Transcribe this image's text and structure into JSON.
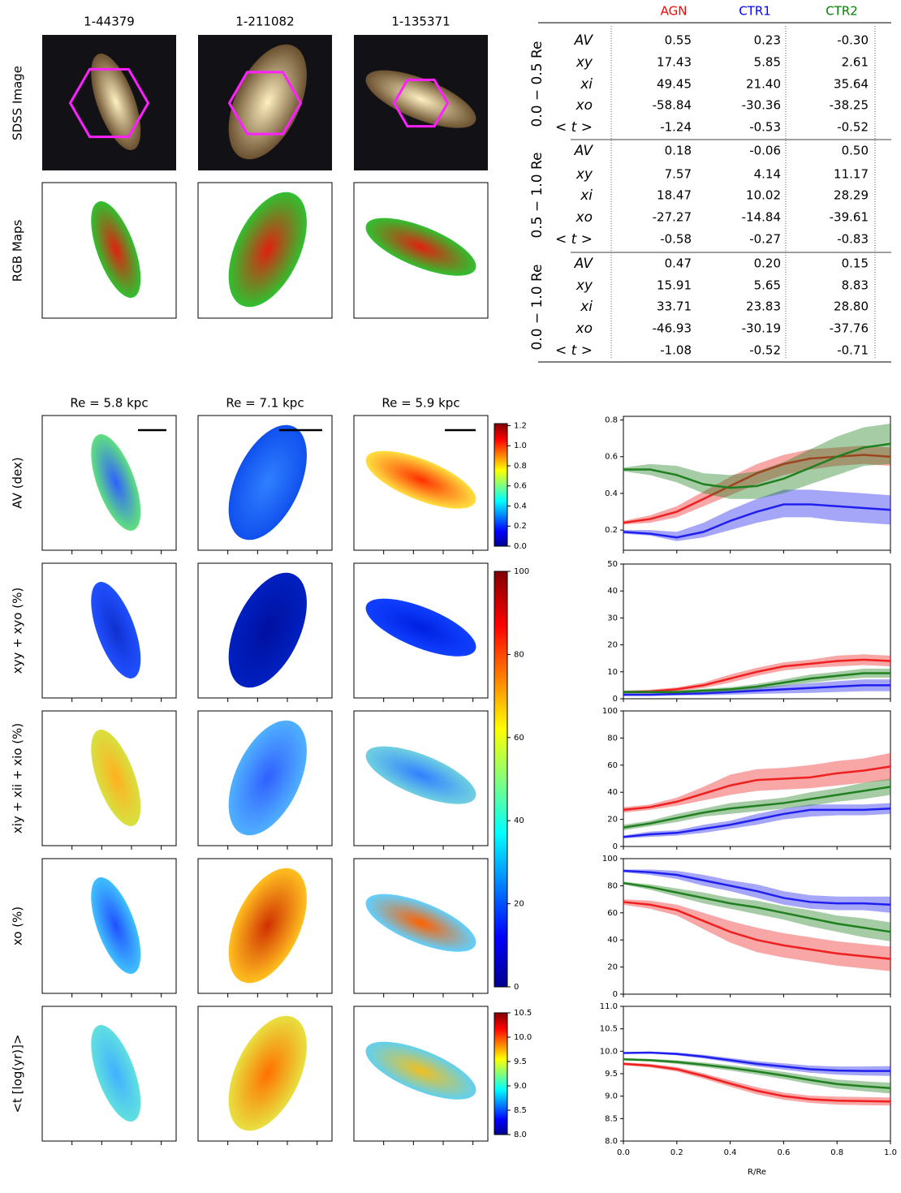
{
  "galaxies": {
    "ids": [
      "1-44379",
      "1-211082",
      "1-135371"
    ],
    "re_labels": [
      "Re = 5.8 kpc",
      "Re = 7.1 kpc",
      "Re = 5.9 kpc"
    ]
  },
  "image_row_labels": [
    "SDSS Image",
    "RGB Maps"
  ],
  "map_row_labels": [
    "AV (dex)",
    "xyy + xyo (%)",
    "xiy + xii + xio (%)",
    "xo (%)",
    "<t [log(yr)]>"
  ],
  "table": {
    "columns": [
      "AGN",
      "CTR1",
      "CTR2"
    ],
    "colors": [
      "#ff0000",
      "#0000ff",
      "#008000"
    ],
    "groups": [
      {
        "label": "0.0 − 0.5 Re",
        "rows": [
          {
            "label": "AV",
            "values": [
              "0.55",
              "0.23",
              "-0.30"
            ]
          },
          {
            "label": "xy",
            "values": [
              "17.43",
              "5.85",
              "2.61"
            ]
          },
          {
            "label": "xi",
            "values": [
              "49.45",
              "21.40",
              "35.64"
            ]
          },
          {
            "label": "xo",
            "values": [
              "-58.84",
              "-30.36",
              "-38.25"
            ]
          },
          {
            "label": "< t >",
            "values": [
              "-1.24",
              "-0.53",
              "-0.52"
            ]
          }
        ]
      },
      {
        "label": "0.5 − 1.0 Re",
        "rows": [
          {
            "label": "AV",
            "values": [
              "0.18",
              "-0.06",
              "0.50"
            ]
          },
          {
            "label": "xy",
            "values": [
              "7.57",
              "4.14",
              "11.17"
            ]
          },
          {
            "label": "xi",
            "values": [
              "18.47",
              "10.02",
              "28.29"
            ]
          },
          {
            "label": "xo",
            "values": [
              "-27.27",
              "-14.84",
              "-39.61"
            ]
          },
          {
            "label": "< t >",
            "values": [
              "-0.58",
              "-0.27",
              "-0.83"
            ]
          }
        ]
      },
      {
        "label": "0.0 − 1.0 Re",
        "rows": [
          {
            "label": "AV",
            "values": [
              "0.47",
              "0.20",
              "0.15"
            ]
          },
          {
            "label": "xy",
            "values": [
              "15.91",
              "5.65",
              "8.83"
            ]
          },
          {
            "label": "xi",
            "values": [
              "33.71",
              "23.83",
              "28.80"
            ]
          },
          {
            "label": "xo",
            "values": [
              "-46.93",
              "-30.19",
              "-37.76"
            ]
          },
          {
            "label": "< t >",
            "values": [
              "-1.08",
              "-0.52",
              "-0.71"
            ]
          }
        ]
      }
    ]
  },
  "colorbars": [
    {
      "lim": [
        0,
        1.22
      ],
      "ticks": [
        {
          "value": 0,
          "label": "0.0"
        },
        0.2,
        0.4,
        0.6,
        0.8,
        {
          "value": 1,
          "label": "1.0"
        },
        1.2
      ]
    },
    {
      "lim": [
        0,
        100
      ],
      "ticks": [
        0,
        20,
        40,
        60,
        80,
        100
      ]
    },
    {
      "lim": [
        8.0,
        10.5
      ],
      "ticks": [
        {
          "value": 8,
          "label": "8.0"
        },
        8.5,
        {
          "value": 9,
          "label": "9.0"
        },
        9.5,
        {
          "value": 10,
          "label": "10.0"
        },
        10.5
      ]
    }
  ],
  "chart_data": [
    {
      "type": "line",
      "x": [
        0,
        0.1,
        0.2,
        0.3,
        0.4,
        0.5,
        0.6,
        0.7,
        0.8,
        0.9,
        1.0
      ],
      "xlim": [
        0,
        1
      ],
      "ylim": [
        0.09,
        0.82
      ],
      "yticks": [
        0.2,
        0.4,
        0.6,
        0.8
      ],
      "series": [
        {
          "color": "#ee2020",
          "values": [
            0.24,
            0.26,
            0.3,
            0.37,
            0.44,
            0.51,
            0.56,
            0.59,
            0.6,
            0.61,
            0.6
          ],
          "low": [
            0.23,
            0.24,
            0.27,
            0.33,
            0.39,
            0.45,
            0.5,
            0.53,
            0.55,
            0.56,
            0.55
          ],
          "high": [
            0.25,
            0.28,
            0.33,
            0.41,
            0.49,
            0.56,
            0.61,
            0.64,
            0.65,
            0.66,
            0.65
          ]
        },
        {
          "color": "#2020ee",
          "values": [
            0.19,
            0.18,
            0.16,
            0.19,
            0.25,
            0.3,
            0.34,
            0.34,
            0.33,
            0.32,
            0.31
          ],
          "low": [
            0.18,
            0.17,
            0.14,
            0.16,
            0.2,
            0.24,
            0.27,
            0.27,
            0.25,
            0.24,
            0.23
          ],
          "high": [
            0.2,
            0.2,
            0.19,
            0.24,
            0.31,
            0.37,
            0.42,
            0.42,
            0.41,
            0.4,
            0.39
          ]
        },
        {
          "color": "#208020",
          "values": [
            0.53,
            0.53,
            0.5,
            0.45,
            0.43,
            0.44,
            0.48,
            0.54,
            0.6,
            0.65,
            0.67
          ],
          "low": [
            0.52,
            0.5,
            0.46,
            0.4,
            0.37,
            0.37,
            0.4,
            0.45,
            0.5,
            0.55,
            0.56
          ],
          "high": [
            0.54,
            0.56,
            0.55,
            0.51,
            0.5,
            0.52,
            0.57,
            0.64,
            0.71,
            0.76,
            0.78
          ]
        }
      ]
    },
    {
      "type": "line",
      "x": [
        0,
        0.1,
        0.2,
        0.3,
        0.4,
        0.5,
        0.6,
        0.7,
        0.8,
        0.9,
        1.0
      ],
      "xlim": [
        0,
        1
      ],
      "ylim": [
        0,
        50
      ],
      "yticks": [
        0,
        10,
        20,
        30,
        40,
        50
      ],
      "series": [
        {
          "color": "#ee2020",
          "values": [
            2.5,
            2.7,
            3.5,
            5,
            7.5,
            10,
            12,
            13,
            14,
            14.5,
            14
          ],
          "low": [
            2,
            2,
            2.8,
            4,
            6,
            8.5,
            10.5,
            11.5,
            12,
            12.5,
            12
          ],
          "high": [
            3,
            3.4,
            4.2,
            6,
            9,
            11.5,
            13.5,
            14.5,
            16,
            16.5,
            16
          ]
        },
        {
          "color": "#2020ee",
          "values": [
            1.5,
            1.5,
            1.8,
            2,
            2.5,
            3,
            3.5,
            4,
            4.5,
            5,
            5
          ],
          "low": [
            1,
            1,
            1.2,
            1.3,
            1.5,
            1.8,
            2,
            2.2,
            2.5,
            2.8,
            2.8
          ],
          "high": [
            2,
            2,
            2.4,
            2.8,
            3.5,
            4.2,
            5,
            5.8,
            6.5,
            7.2,
            7.2
          ]
        },
        {
          "color": "#208020",
          "values": [
            2.5,
            2.5,
            2.5,
            3,
            3.5,
            4.5,
            6,
            7.5,
            8.5,
            9.5,
            9.5
          ],
          "low": [
            2,
            2,
            2,
            2.3,
            2.7,
            3.5,
            4.8,
            6,
            7,
            7.8,
            7.8
          ],
          "high": [
            3,
            3,
            3,
            3.7,
            4.3,
            5.5,
            7.2,
            9,
            10,
            11.2,
            11.2
          ]
        }
      ]
    },
    {
      "type": "line",
      "x": [
        0,
        0.1,
        0.2,
        0.3,
        0.4,
        0.5,
        0.6,
        0.7,
        0.8,
        0.9,
        1.0
      ],
      "xlim": [
        0,
        1
      ],
      "ylim": [
        0,
        100
      ],
      "yticks": [
        0,
        20,
        40,
        60,
        80,
        100
      ],
      "series": [
        {
          "color": "#ee2020",
          "values": [
            27,
            29,
            33,
            39,
            45,
            49,
            50,
            51,
            54,
            56,
            59
          ],
          "low": [
            25,
            27,
            30,
            34,
            38,
            41,
            42,
            43,
            45,
            47,
            49
          ],
          "high": [
            29,
            31,
            36,
            44,
            53,
            57,
            58,
            60,
            63,
            65,
            69
          ]
        },
        {
          "color": "#2020ee",
          "values": [
            7,
            9,
            10,
            13,
            16,
            20,
            24,
            27,
            27,
            27,
            28
          ],
          "low": [
            6,
            7,
            8,
            10,
            13,
            16,
            20,
            22,
            23,
            23,
            24
          ],
          "high": [
            8,
            11,
            12,
            16,
            19,
            24,
            28,
            31,
            31,
            31,
            32
          ]
        },
        {
          "color": "#208020",
          "values": [
            14,
            17,
            21,
            25,
            28,
            30,
            32,
            35,
            38,
            41,
            44
          ],
          "low": [
            12,
            15,
            18,
            22,
            24,
            26,
            28,
            30,
            33,
            35,
            38
          ],
          "high": [
            16,
            19,
            24,
            28,
            32,
            34,
            36,
            40,
            43,
            47,
            50
          ]
        }
      ]
    },
    {
      "type": "line",
      "x": [
        0,
        0.1,
        0.2,
        0.3,
        0.4,
        0.5,
        0.6,
        0.7,
        0.8,
        0.9,
        1.0
      ],
      "xlim": [
        0,
        1
      ],
      "ylim": [
        0,
        100
      ],
      "yticks": [
        0,
        20,
        40,
        60,
        80,
        100
      ],
      "series": [
        {
          "color": "#ee2020",
          "values": [
            68,
            66,
            62,
            54,
            46,
            40,
            36,
            33,
            30,
            28,
            26
          ],
          "low": [
            66,
            63,
            58,
            48,
            38,
            31,
            27,
            24,
            21,
            19,
            17
          ],
          "high": [
            70,
            69,
            66,
            60,
            54,
            49,
            45,
            42,
            39,
            37,
            35
          ]
        },
        {
          "color": "#2020ee",
          "values": [
            91,
            90,
            88,
            84,
            80,
            76,
            71,
            68,
            67,
            67,
            66
          ],
          "low": [
            90,
            88,
            85,
            80,
            76,
            71,
            66,
            63,
            62,
            62,
            60
          ],
          "high": [
            92,
            92,
            91,
            88,
            84,
            81,
            76,
            73,
            72,
            72,
            72
          ]
        },
        {
          "color": "#208020",
          "values": [
            82,
            79,
            75,
            71,
            67,
            64,
            60,
            56,
            52,
            49,
            46
          ],
          "low": [
            81,
            77,
            72,
            67,
            63,
            59,
            55,
            50,
            46,
            42,
            39
          ],
          "high": [
            83,
            81,
            78,
            75,
            71,
            69,
            65,
            62,
            58,
            56,
            53
          ]
        }
      ]
    },
    {
      "type": "line",
      "x": [
        0,
        0.1,
        0.2,
        0.3,
        0.4,
        0.5,
        0.6,
        0.7,
        0.8,
        0.9,
        1.0
      ],
      "xlim": [
        0,
        1
      ],
      "ylim": [
        8,
        11
      ],
      "yticks": [
        {
          "value": 8,
          "label": "8.0"
        },
        8.5,
        {
          "value": 9,
          "label": "9.0"
        },
        9.5,
        {
          "value": 10,
          "label": "10.0"
        },
        10.5,
        {
          "value": 11,
          "label": "11.0"
        }
      ],
      "xticks": [
        {
          "value": 0,
          "label": "0.0"
        },
        0.2,
        0.4,
        0.6,
        0.8,
        {
          "value": 1,
          "label": "1.0"
        }
      ],
      "xlabel": "R/Re",
      "series": [
        {
          "color": "#ee2020",
          "values": [
            9.72,
            9.68,
            9.6,
            9.45,
            9.28,
            9.12,
            9.0,
            8.93,
            8.9,
            8.89,
            8.88
          ],
          "low": [
            9.69,
            9.64,
            9.55,
            9.39,
            9.21,
            9.04,
            8.92,
            8.85,
            8.81,
            8.8,
            8.79
          ],
          "high": [
            9.75,
            9.72,
            9.65,
            9.51,
            9.35,
            9.2,
            9.08,
            9.01,
            8.99,
            8.98,
            8.97
          ]
        },
        {
          "color": "#2020ee",
          "values": [
            9.96,
            9.97,
            9.94,
            9.88,
            9.8,
            9.72,
            9.66,
            9.6,
            9.57,
            9.56,
            9.56
          ],
          "low": [
            9.94,
            9.95,
            9.91,
            9.84,
            9.75,
            9.66,
            9.59,
            9.52,
            9.48,
            9.46,
            9.45
          ],
          "high": [
            9.98,
            9.99,
            9.97,
            9.92,
            9.85,
            9.78,
            9.73,
            9.68,
            9.66,
            9.66,
            9.67
          ]
        },
        {
          "color": "#208020",
          "values": [
            9.82,
            9.8,
            9.76,
            9.7,
            9.63,
            9.55,
            9.46,
            9.36,
            9.27,
            9.22,
            9.18
          ],
          "low": [
            9.8,
            9.77,
            9.72,
            9.65,
            9.57,
            9.48,
            9.38,
            9.27,
            9.17,
            9.11,
            9.06
          ],
          "high": [
            9.84,
            9.83,
            9.8,
            9.75,
            9.69,
            9.62,
            9.54,
            9.45,
            9.37,
            9.33,
            9.3
          ]
        }
      ]
    }
  ]
}
